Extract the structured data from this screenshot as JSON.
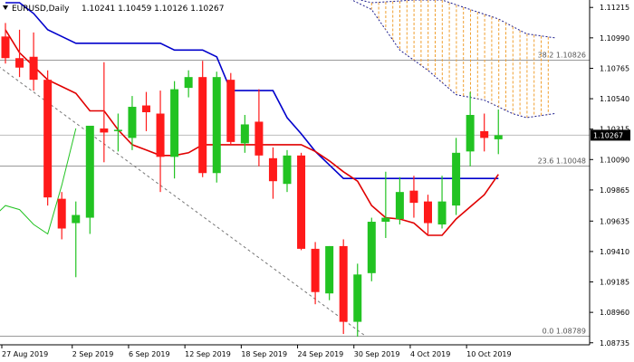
{
  "header": {
    "symbol_label": "EURUSD,Daily",
    "ohlc_label": "1.10241 1.10459 1.10126 1.10267"
  },
  "current_price_label": "1.10267",
  "fib_levels": [
    {
      "label": "38.2 1.10826",
      "price": 1.10826
    },
    {
      "label": "23.6 1.10048",
      "price": 1.10048
    },
    {
      "label": "0.0 1.08789",
      "price": 1.08789
    }
  ],
  "colors": {
    "bull": "#22c322",
    "bear": "#ff1a1a",
    "red_line": "#e00000",
    "blue_line": "#0000cc",
    "green_line": "#22c322",
    "cloud": "#f0a030",
    "grid": "#c8c8c8",
    "axis_bg": "#ffffff",
    "price_tag_bg": "#000000",
    "price_tag_fg": "#ffffff"
  },
  "chart_data": {
    "type": "candlestick",
    "y_axis_ticks": [
      "1.11215",
      "1.10990",
      "1.10765",
      "1.10540",
      "1.10315",
      "1.10090",
      "1.09865",
      "1.09635",
      "1.09410",
      "1.09185",
      "1.08960",
      "1.08735"
    ],
    "ylim": [
      1.0872,
      1.1127
    ],
    "x_axis_labels": [
      {
        "label": "27 Aug 2019",
        "index": 0
      },
      {
        "label": "2 Sep 2019",
        "index": 5
      },
      {
        "label": "6 Sep 2019",
        "index": 9
      },
      {
        "label": "12 Sep 2019",
        "index": 13
      },
      {
        "label": "18 Sep 2019",
        "index": 17
      },
      {
        "label": "24 Sep 2019",
        "index": 21
      },
      {
        "label": "30 Sep 2019",
        "index": 25
      },
      {
        "label": "4 Oct 2019",
        "index": 29
      },
      {
        "label": "10 Oct 2019",
        "index": 33
      }
    ],
    "candles": [
      {
        "o": 1.11,
        "h": 1.111,
        "l": 1.108,
        "c": 1.1084
      },
      {
        "o": 1.1084,
        "h": 1.1105,
        "l": 1.107,
        "c": 1.1077
      },
      {
        "o": 1.1085,
        "h": 1.1103,
        "l": 1.106,
        "c": 1.1068
      },
      {
        "o": 1.1068,
        "h": 1.1075,
        "l": 1.0975,
        "c": 1.0981
      },
      {
        "o": 1.098,
        "h": 1.0985,
        "l": 1.095,
        "c": 1.0958
      },
      {
        "o": 1.0962,
        "h": 1.0978,
        "l": 1.0922,
        "c": 1.0968
      },
      {
        "o": 1.0966,
        "h": 1.1033,
        "l": 1.0954,
        "c": 1.1034
      },
      {
        "o": 1.1032,
        "h": 1.1081,
        "l": 1.1007,
        "c": 1.1029
      },
      {
        "o": 1.103,
        "h": 1.1043,
        "l": 1.1015,
        "c": 1.1031
      },
      {
        "o": 1.1025,
        "h": 1.1056,
        "l": 1.1016,
        "c": 1.1048
      },
      {
        "o": 1.1049,
        "h": 1.1059,
        "l": 1.103,
        "c": 1.1044
      },
      {
        "o": 1.1043,
        "h": 1.106,
        "l": 1.0985,
        "c": 1.1011
      },
      {
        "o": 1.1011,
        "h": 1.1067,
        "l": 1.0995,
        "c": 1.1061
      },
      {
        "o": 1.1062,
        "h": 1.1075,
        "l": 1.1055,
        "c": 1.107
      },
      {
        "o": 1.107,
        "h": 1.1082,
        "l": 1.0996,
        "c": 1.0999
      },
      {
        "o": 1.0999,
        "h": 1.1074,
        "l": 1.0992,
        "c": 1.107
      },
      {
        "o": 1.1068,
        "h": 1.1073,
        "l": 1.102,
        "c": 1.1022
      },
      {
        "o": 1.1021,
        "h": 1.1042,
        "l": 1.1014,
        "c": 1.1035
      },
      {
        "o": 1.1037,
        "h": 1.1061,
        "l": 1.1004,
        "c": 1.1012
      },
      {
        "o": 1.101,
        "h": 1.1018,
        "l": 1.098,
        "c": 1.0993
      },
      {
        "o": 1.0991,
        "h": 1.1016,
        "l": 1.0985,
        "c": 1.1012
      },
      {
        "o": 1.1012,
        "h": 1.1014,
        "l": 1.0942,
        "c": 1.0943
      },
      {
        "o": 1.0943,
        "h": 1.0948,
        "l": 1.0902,
        "c": 1.0911
      },
      {
        "o": 1.091,
        "h": 1.0945,
        "l": 1.0905,
        "c": 1.0945
      },
      {
        "o": 1.0945,
        "h": 1.095,
        "l": 1.088,
        "c": 1.0889
      },
      {
        "o": 1.0889,
        "h": 1.0932,
        "l": 1.0878,
        "c": 1.0924
      },
      {
        "o": 1.0925,
        "h": 1.0966,
        "l": 1.0919,
        "c": 1.0963
      },
      {
        "o": 1.0963,
        "h": 1.1,
        "l": 1.0951,
        "c": 1.0966
      },
      {
        "o": 1.0965,
        "h": 1.0996,
        "l": 1.0961,
        "c": 1.0985
      },
      {
        "o": 1.0986,
        "h": 1.0997,
        "l": 1.0966,
        "c": 1.0977
      },
      {
        "o": 1.0978,
        "h": 1.0983,
        "l": 1.0953,
        "c": 1.0962
      },
      {
        "o": 1.0961,
        "h": 1.0997,
        "l": 1.0958,
        "c": 1.0978
      },
      {
        "o": 1.0975,
        "h": 1.1025,
        "l": 1.0968,
        "c": 1.1014
      },
      {
        "o": 1.1015,
        "h": 1.1059,
        "l": 1.1004,
        "c": 1.1042
      },
      {
        "o": 1.103,
        "h": 1.1043,
        "l": 1.1015,
        "c": 1.1025
      },
      {
        "o": 1.1024,
        "h": 1.1046,
        "l": 1.1013,
        "c": 1.1027
      }
    ],
    "red_line": [
      1.1105,
      1.1088,
      1.1078,
      1.1068,
      1.1063,
      1.1058,
      1.1045,
      1.1045,
      1.1031,
      1.102,
      1.1016,
      1.1012,
      1.1012,
      1.1014,
      1.102,
      1.102,
      1.102,
      1.102,
      1.102,
      1.102,
      1.102,
      1.102,
      1.1015,
      1.1008,
      1.1,
      1.0993,
      1.0975,
      1.0966,
      1.0965,
      1.0962,
      1.0953,
      1.0953,
      1.0965,
      1.0974,
      1.0983,
      1.0998
    ],
    "blue_line": [
      1.1125,
      1.1125,
      1.1117,
      1.1105,
      1.11,
      1.1095,
      1.1095,
      1.1095,
      1.1095,
      1.1095,
      1.1095,
      1.1095,
      1.109,
      1.109,
      1.109,
      1.1085,
      1.106,
      1.106,
      1.106,
      1.106,
      1.104,
      1.1028,
      1.1015,
      1.1005,
      1.0995,
      1.0995,
      1.0995,
      1.0995,
      1.0995,
      1.0995,
      1.0995,
      1.0995,
      1.0995,
      1.0995,
      1.0995,
      1.0995
    ],
    "green_line": {
      "start_index": -1,
      "values": [
        1.0965,
        1.0975,
        1.0972,
        1.0961,
        1.0954,
        1.099,
        1.1032
      ]
    },
    "cloud_top": [
      {
        "i": 24,
        "v": 1.113
      },
      {
        "i": 26,
        "v": 1.1125
      },
      {
        "i": 29,
        "v": 1.1127
      },
      {
        "i": 31,
        "v": 1.1127
      },
      {
        "i": 33,
        "v": 1.112
      },
      {
        "i": 35,
        "v": 1.1113
      },
      {
        "i": 37,
        "v": 1.1102
      },
      {
        "i": 39,
        "v": 1.1099
      }
    ],
    "cloud_bottom": [
      {
        "i": 24,
        "v": 1.113
      },
      {
        "i": 26,
        "v": 1.112
      },
      {
        "i": 28,
        "v": 1.109
      },
      {
        "i": 30,
        "v": 1.1075
      },
      {
        "i": 32,
        "v": 1.1057
      },
      {
        "i": 34,
        "v": 1.1053
      },
      {
        "i": 36,
        "v": 1.1043
      },
      {
        "i": 37,
        "v": 1.104
      },
      {
        "i": 39,
        "v": 1.1043
      }
    ],
    "trendline": {
      "from": {
        "i": -0.5,
        "v": 1.1078
      },
      "to": {
        "i": 25.5,
        "v": 1.0879
      }
    }
  }
}
